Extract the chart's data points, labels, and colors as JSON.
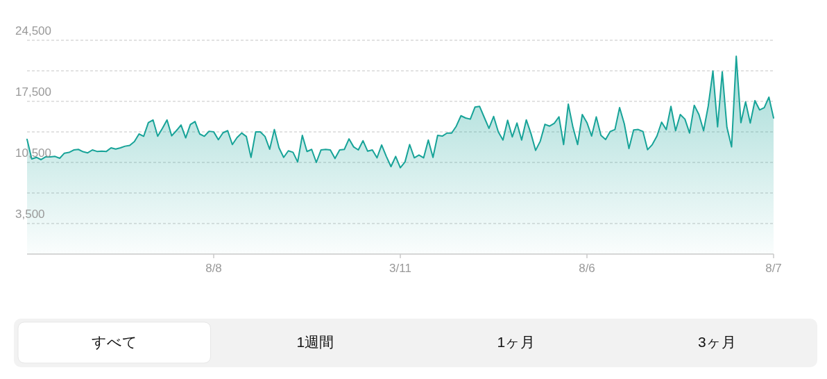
{
  "chart_data": {
    "type": "area",
    "categories": [
      null,
      null,
      null,
      null,
      null,
      null,
      null,
      null,
      null,
      null,
      null,
      null,
      null,
      null,
      null,
      null,
      null,
      null,
      null,
      null,
      null,
      null,
      null,
      null,
      null,
      null,
      null,
      null,
      null,
      null,
      null,
      null,
      null,
      null,
      null,
      null,
      null,
      null,
      null,
      null,
      "8/8",
      null,
      null,
      null,
      null,
      null,
      null,
      null,
      null,
      null,
      null,
      null,
      null,
      null,
      null,
      null,
      null,
      null,
      null,
      null,
      null,
      null,
      null,
      null,
      null,
      null,
      null,
      null,
      null,
      null,
      null,
      null,
      null,
      null,
      null,
      null,
      null,
      null,
      null,
      null,
      "3/11",
      null,
      null,
      null,
      null,
      null,
      null,
      null,
      null,
      null,
      null,
      null,
      null,
      null,
      null,
      null,
      null,
      null,
      null,
      null,
      null,
      null,
      null,
      null,
      null,
      null,
      null,
      null,
      null,
      null,
      null,
      null,
      null,
      null,
      null,
      null,
      null,
      null,
      null,
      null,
      "8/6",
      null,
      null,
      null,
      null,
      null,
      null,
      null,
      null,
      null,
      null,
      null,
      null,
      null,
      null,
      null,
      null,
      null,
      null,
      null,
      null,
      null,
      null,
      null,
      null,
      null,
      null,
      null,
      null,
      null,
      null,
      null,
      null,
      null,
      null,
      null,
      null,
      null,
      null,
      null,
      "8/7"
    ],
    "series": [
      {
        "color": "#17a398",
        "values": [
          13150,
          10900,
          11080,
          10820,
          11140,
          11140,
          11190,
          10980,
          11560,
          11650,
          11930,
          11990,
          11730,
          11600,
          11930,
          11760,
          11800,
          11760,
          12170,
          12030,
          12170,
          12360,
          12450,
          12880,
          13760,
          13500,
          15060,
          15370,
          13500,
          14400,
          15370,
          13550,
          14140,
          14790,
          13320,
          14840,
          15190,
          13760,
          13500,
          14070,
          14010,
          13110,
          13900,
          14140,
          12550,
          13340,
          13870,
          13470,
          11080,
          14000,
          14000,
          13470,
          12010,
          14270,
          12170,
          11080,
          11830,
          11660,
          10550,
          13600,
          11750,
          11990,
          10500,
          11930,
          11990,
          11930,
          10950,
          11930,
          11990,
          13200,
          12280,
          11930,
          12990,
          11790,
          11930,
          11030,
          12500,
          11190,
          10020,
          11190,
          9890,
          10550,
          12550,
          11030,
          11350,
          11030,
          13070,
          11080,
          13600,
          13520,
          13860,
          13860,
          14660,
          15850,
          15590,
          15460,
          16840,
          16920,
          15650,
          14400,
          15770,
          14000,
          13070,
          15330,
          13420,
          15010,
          13070,
          15380,
          13810,
          11880,
          12940,
          14870,
          14660,
          14980,
          15730,
          12550,
          17180,
          14530,
          12550,
          15990,
          15060,
          13520,
          15720,
          13600,
          13120,
          14050,
          14270,
          16780,
          14930,
          12090,
          14210,
          14270,
          14050,
          11960,
          12540,
          13520,
          15110,
          14270,
          16920,
          14140,
          15990,
          15460,
          13870,
          17050,
          15990,
          14140,
          16970,
          20970,
          14580,
          20890,
          14530,
          12280,
          22670,
          15060,
          17450,
          15010,
          17580,
          16520,
          16780,
          17980,
          15590
        ]
      }
    ],
    "ylim": [
      0,
      24500
    ],
    "yticks": [
      {
        "value": 3500,
        "label": "3,500"
      },
      {
        "value": 7000,
        "label": null
      },
      {
        "value": 10500,
        "label": "10,500"
      },
      {
        "value": 14000,
        "label": null
      },
      {
        "value": 17500,
        "label": "17,500"
      },
      {
        "value": 21000,
        "label": null
      },
      {
        "value": 24500,
        "label": "24,500"
      }
    ],
    "grid": "y",
    "annotations": [
      "すべて",
      "1週間",
      "1ヶ月",
      "3ヶ月"
    ]
  }
}
